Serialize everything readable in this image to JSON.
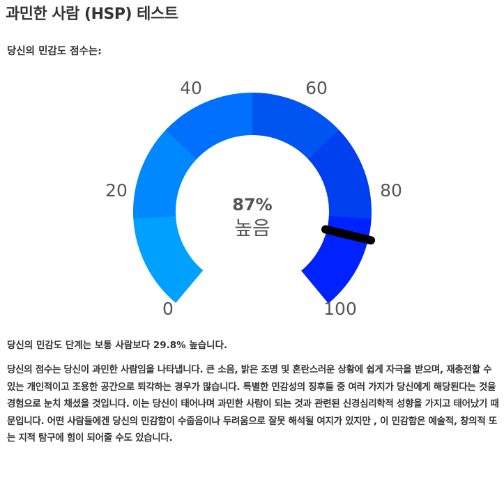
{
  "page": {
    "title": "과민한 사람 (HSP) 테스트",
    "score_heading": "당신의 민감도 점수는:",
    "comparison": "당신의 민감도 단계는 보통 사람보다 29.8% 높습니다.",
    "description": "당신의 점수는 당신이 과민한 사람임을 나타냅니다. 큰 소음, 밝은 조명 및 혼란스러운 상황에 쉽게 자극을 받으며, 재충전할 수 있는 개인적이고 조용한 공간으로 퇴각하는 경우가 많습니다. 특별한 민감성의 징후들 중 여러 가지가 당신에게 해당된다는 것을 경험으로 눈치 채셨을 것입니다. 이는 당신이 태어나며 과민한 사람이 되는 것과 관련된 신경심리학적 성향을 가지고 태어났기 때문입니다. 어떤 사람들에겐 당신의 민감함이 수줍음이나 두려움으로 잘못 해석될 여지가 있지만 , 이 민감함은 예술적, 창의적 또는 지적 탐구에 힘이 되어줄 수도 있습니다."
  },
  "gauge": {
    "min": 0,
    "max": 100,
    "score": 87,
    "value_text": "87%",
    "level_text": "높음",
    "tick_labels": [
      "0",
      "20",
      "40",
      "60",
      "80",
      "100"
    ],
    "segment_colors": [
      "#00a0ff",
      "#0088ff",
      "#0070ff",
      "#0055f0",
      "#0040ee",
      "#0022ff"
    ],
    "needle_color": "#000000"
  }
}
